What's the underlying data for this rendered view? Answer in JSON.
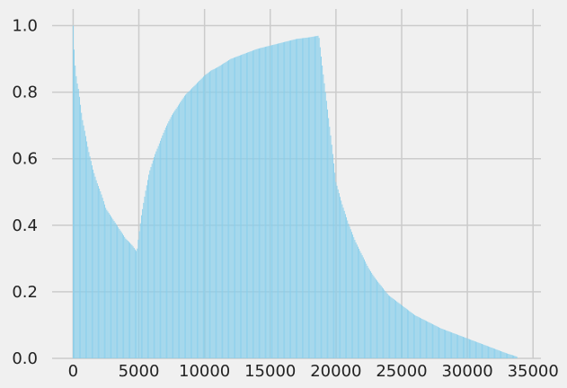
{
  "chart_data": {
    "type": "bar",
    "title": "",
    "xlabel": "",
    "ylabel": "",
    "xlim": [
      -1600,
      35600
    ],
    "ylim": [
      0,
      1.05
    ],
    "grid": true,
    "legend": "none",
    "bar_color": "#87ceeb",
    "background_color": "#f0f0f0",
    "grid_color": "#cbcbcb",
    "x_ticks": [
      0,
      5000,
      10000,
      15000,
      20000,
      25000,
      30000,
      35000
    ],
    "x_tick_labels": [
      "0",
      "5000",
      "10000",
      "15000",
      "20000",
      "25000",
      "30000",
      "35000"
    ],
    "y_ticks": [
      0.0,
      0.2,
      0.4,
      0.6,
      0.8,
      1.0
    ],
    "y_tick_labels": [
      "0.0",
      "0.2",
      "0.4",
      "0.6",
      "0.8",
      "1.0"
    ],
    "x": [
      0,
      100,
      200,
      300,
      400,
      500,
      700,
      900,
      1200,
      1500,
      1800,
      2100,
      2500,
      3000,
      3500,
      4000,
      4500,
      4850,
      5000,
      5200,
      5500,
      5800,
      6200,
      6600,
      7000,
      7500,
      8000,
      8500,
      9000,
      9500,
      10000,
      10500,
      11000,
      12000,
      13000,
      14000,
      15000,
      16000,
      17000,
      18000,
      18700,
      18900,
      19200,
      19600,
      20000,
      20500,
      21000,
      21500,
      22000,
      22500,
      23000,
      24000,
      25000,
      26000,
      27000,
      28000,
      29000,
      30000,
      31000,
      32000,
      33000,
      33800
    ],
    "values": [
      1.0,
      0.91,
      0.86,
      0.83,
      0.81,
      0.78,
      0.72,
      0.68,
      0.62,
      0.57,
      0.53,
      0.5,
      0.45,
      0.42,
      0.39,
      0.36,
      0.34,
      0.32,
      0.37,
      0.43,
      0.5,
      0.56,
      0.61,
      0.65,
      0.69,
      0.73,
      0.76,
      0.79,
      0.81,
      0.83,
      0.85,
      0.865,
      0.875,
      0.9,
      0.915,
      0.93,
      0.94,
      0.95,
      0.96,
      0.965,
      0.97,
      0.9,
      0.8,
      0.67,
      0.53,
      0.46,
      0.4,
      0.35,
      0.31,
      0.27,
      0.24,
      0.19,
      0.16,
      0.13,
      0.11,
      0.09,
      0.075,
      0.06,
      0.045,
      0.03,
      0.015,
      0.005
    ]
  }
}
